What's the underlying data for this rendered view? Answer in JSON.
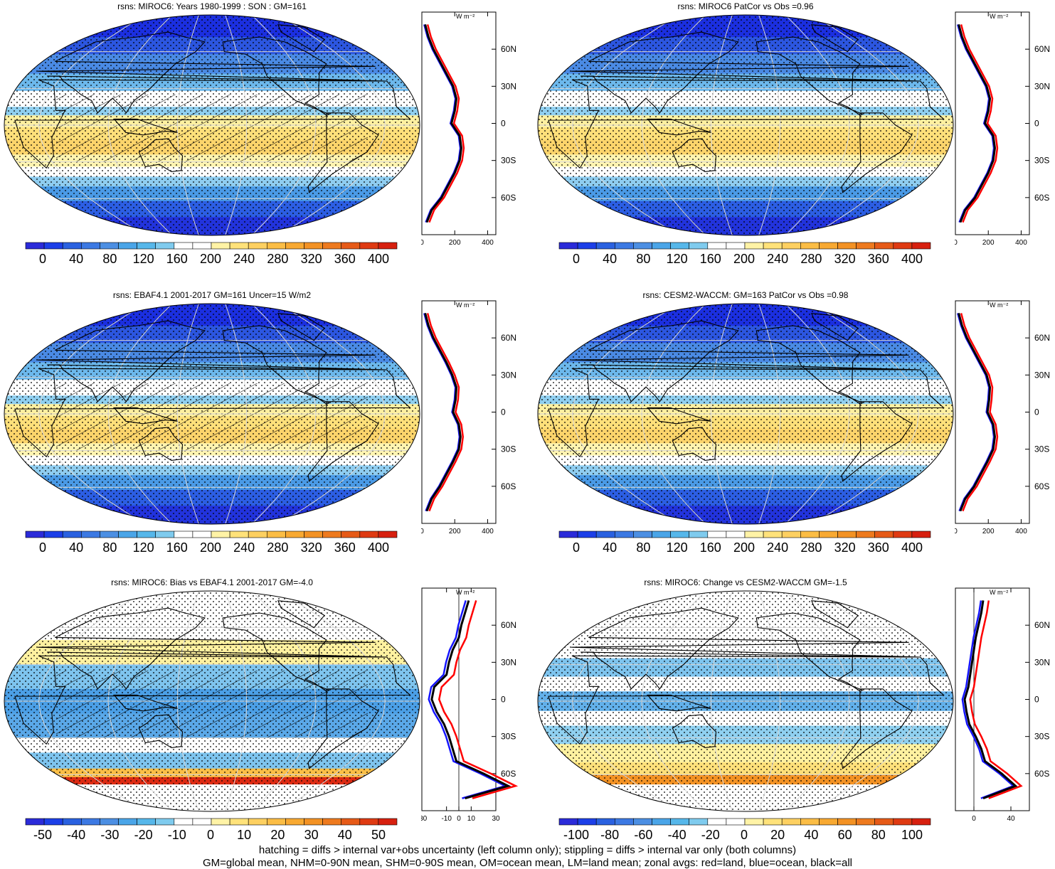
{
  "footer": {
    "line1": "hatching = diffs > internal var+obs uncertainty (left column only); stippling = diffs > internal var only (both columns)",
    "line2": "GM=global mean, NHM=0-90N mean, SHM=0-90S mean, OM=ocean mean, LM=land mean; zonal avgs: red=land, blue=ocean, black=all"
  },
  "lat_labels": [
    "60N",
    "30N",
    "0",
    "30S",
    "60S"
  ],
  "unit_label": "W m⁻²",
  "colors": {
    "land": "#ff0000",
    "ocean": "#1515ff",
    "all": "#000000"
  },
  "panels": [
    {
      "title": "rsns: MIROC6: Years 1980-1999 : SON : GM=161",
      "colorbar": [
        "0",
        "40",
        "80",
        "120",
        "160",
        "200",
        "240",
        "280",
        "320",
        "360",
        "400"
      ],
      "zonal_ticks": [
        "0",
        "200",
        "400"
      ],
      "kind": "abs",
      "hatch": true
    },
    {
      "title": "rsns: MIROC6 PatCor vs Obs =0.96",
      "colorbar": [
        "0",
        "40",
        "80",
        "120",
        "160",
        "200",
        "240",
        "280",
        "320",
        "360",
        "400"
      ],
      "zonal_ticks": [
        "0",
        "200",
        "400"
      ],
      "kind": "abs",
      "hatch": false
    },
    {
      "title": "rsns: EBAF4.1 2001-2017 GM=161 Uncer=15 W/m2",
      "colorbar": [
        "0",
        "40",
        "80",
        "120",
        "160",
        "200",
        "240",
        "280",
        "320",
        "360",
        "400"
      ],
      "zonal_ticks": [
        "0",
        "200",
        "400"
      ],
      "kind": "abs",
      "hatch": true
    },
    {
      "title": "rsns: CESM2-WACCM: GM=163 PatCor vs Obs =0.98",
      "colorbar": [
        "0",
        "40",
        "80",
        "120",
        "160",
        "200",
        "240",
        "280",
        "320",
        "360",
        "400"
      ],
      "zonal_ticks": [
        "0",
        "200",
        "400"
      ],
      "kind": "abs",
      "hatch": false
    },
    {
      "title": "rsns: MIROC6: Bias vs EBAF4.1 2001-2017  GM=-4.0",
      "colorbar": [
        "-50",
        "-40",
        "-30",
        "-20",
        "-10",
        "0",
        "10",
        "20",
        "30",
        "40",
        "50"
      ],
      "zonal_ticks": [
        "-30",
        "-10",
        "0",
        "10",
        "30"
      ],
      "kind": "bias",
      "hatch": true
    },
    {
      "title": "rsns: MIROC6: Change vs CESM2-WACCM GM=-1.5",
      "colorbar": [
        "-100",
        "-80",
        "-60",
        "-40",
        "-20",
        "0",
        "20",
        "40",
        "60",
        "80",
        "100"
      ],
      "zonal_ticks": [
        "0",
        "40"
      ],
      "kind": "change",
      "hatch": false
    }
  ],
  "chart_data": [
    {
      "type": "line",
      "title": "rsns: MIROC6: Years 1980-1999 : SON : GM=161",
      "ylabel": "W m-2",
      "lat": [
        -80,
        -70,
        -60,
        -50,
        -40,
        -30,
        -20,
        -10,
        0,
        10,
        20,
        30,
        40,
        50,
        60,
        70,
        80
      ],
      "series": [
        {
          "name": "all",
          "values": [
            30,
            60,
            120,
            160,
            200,
            230,
            240,
            230,
            180,
            200,
            210,
            190,
            150,
            110,
            70,
            40,
            20
          ]
        }
      ]
    },
    {
      "type": "line",
      "title": "rsns: MIROC6 PatCor vs Obs =0.96",
      "ylabel": "W m-2",
      "lat": [
        -80,
        -70,
        -60,
        -50,
        -40,
        -30,
        -20,
        -10,
        0,
        10,
        20,
        30,
        40,
        50,
        60,
        70,
        80
      ],
      "series": [
        {
          "name": "all",
          "values": [
            30,
            60,
            120,
            160,
            200,
            230,
            240,
            230,
            180,
            200,
            210,
            190,
            150,
            110,
            70,
            40,
            20
          ]
        }
      ]
    },
    {
      "type": "line",
      "title": "rsns: EBAF4.1 2001-2017 GM=161 Uncer=15 W/m2",
      "ylabel": "W m-2",
      "lat": [
        -80,
        -70,
        -60,
        -50,
        -40,
        -30,
        -20,
        -10,
        0,
        10,
        20,
        30,
        40,
        50,
        60,
        70,
        80
      ],
      "series": [
        {
          "name": "all",
          "values": [
            30,
            60,
            110,
            150,
            190,
            225,
            235,
            225,
            190,
            205,
            210,
            185,
            150,
            110,
            70,
            40,
            20
          ]
        }
      ]
    },
    {
      "type": "line",
      "title": "rsns: CESM2-WACCM: GM=163 PatCor vs Obs =0.98",
      "ylabel": "W m-2",
      "lat": [
        -80,
        -70,
        -60,
        -50,
        -40,
        -30,
        -20,
        -10,
        0,
        10,
        20,
        30,
        40,
        50,
        60,
        70,
        80
      ],
      "series": [
        {
          "name": "all",
          "values": [
            30,
            60,
            115,
            155,
            195,
            230,
            240,
            230,
            195,
            205,
            210,
            190,
            150,
            110,
            70,
            40,
            20
          ]
        }
      ]
    },
    {
      "type": "line",
      "title": "rsns: MIROC6: Bias vs EBAF4.1 2001-2017  GM=-4.0",
      "ylabel": "W m-2",
      "lat": [
        -80,
        -70,
        -60,
        -50,
        -40,
        -30,
        -20,
        -10,
        0,
        10,
        20,
        30,
        40,
        50,
        60,
        70,
        80
      ],
      "series": [
        {
          "name": "all",
          "values": [
            5,
            40,
            20,
            -2,
            -5,
            -8,
            -12,
            -18,
            -22,
            -20,
            -10,
            -8,
            -5,
            0,
            2,
            5,
            8
          ]
        }
      ]
    },
    {
      "type": "line",
      "title": "rsns: MIROC6: Change vs CESM2-WACCM GM=-1.5",
      "ylabel": "W m-2",
      "lat": [
        -80,
        -70,
        -60,
        -50,
        -40,
        -30,
        -20,
        -10,
        0,
        10,
        20,
        30,
        40,
        50,
        60,
        70,
        80
      ],
      "series": [
        {
          "name": "all",
          "values": [
            10,
            45,
            30,
            12,
            8,
            2,
            -5,
            -8,
            -10,
            -6,
            -4,
            -2,
            0,
            2,
            5,
            8,
            10
          ]
        }
      ]
    }
  ]
}
